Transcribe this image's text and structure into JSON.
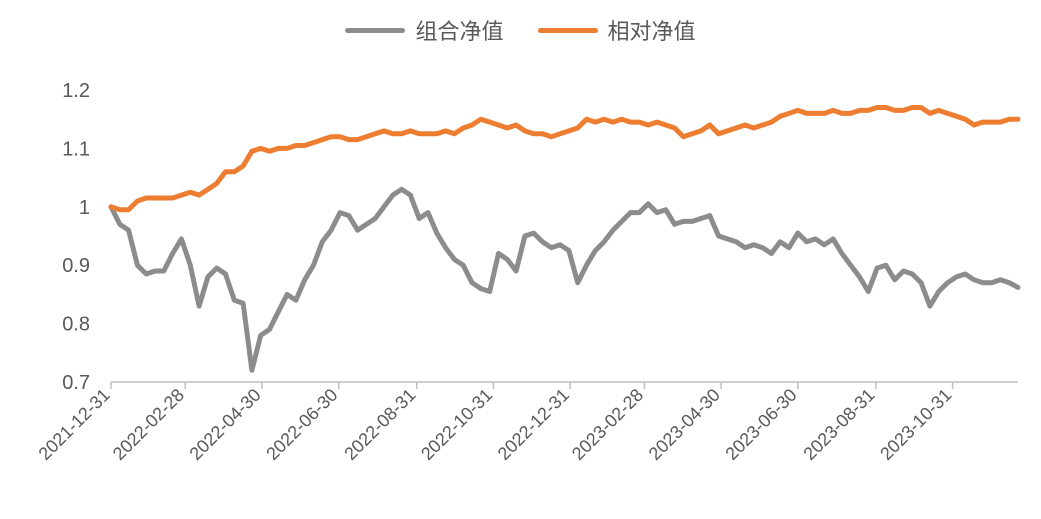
{
  "chart_data": {
    "type": "line",
    "title": "",
    "xlabel": "",
    "ylabel": "",
    "ylim": [
      0.7,
      1.2
    ],
    "yticks": [
      0.7,
      0.8,
      0.9,
      1.0,
      1.1,
      1.2
    ],
    "ytick_labels": [
      "0.7",
      "0.8",
      "0.9",
      "1",
      "1.1",
      "1.2"
    ],
    "xtick_labels": [
      "2021-12-31",
      "2022-02-28",
      "2022-04-30",
      "2022-06-30",
      "2022-08-31",
      "2022-10-31",
      "2022-12-31",
      "2023-02-28",
      "2023-04-30",
      "2023-06-30",
      "2023-08-31",
      "2023-10-31"
    ],
    "x_end": "2023-12-22",
    "grid": false,
    "legend_position": "top",
    "series": [
      {
        "name": "组合净值",
        "color": "#8c8c8c",
        "points": [
          [
            "2021-12-31",
            1.0
          ],
          [
            "2022-01-07",
            0.97
          ],
          [
            "2022-01-14",
            0.96
          ],
          [
            "2022-01-21",
            0.9
          ],
          [
            "2022-01-28",
            0.885
          ],
          [
            "2022-02-04",
            0.89
          ],
          [
            "2022-02-11",
            0.89
          ],
          [
            "2022-02-18",
            0.92
          ],
          [
            "2022-02-25",
            0.945
          ],
          [
            "2022-03-04",
            0.9
          ],
          [
            "2022-03-11",
            0.83
          ],
          [
            "2022-03-18",
            0.88
          ],
          [
            "2022-03-25",
            0.895
          ],
          [
            "2022-04-01",
            0.885
          ],
          [
            "2022-04-08",
            0.84
          ],
          [
            "2022-04-15",
            0.835
          ],
          [
            "2022-04-22",
            0.72
          ],
          [
            "2022-04-29",
            0.78
          ],
          [
            "2022-05-06",
            0.79
          ],
          [
            "2022-05-13",
            0.82
          ],
          [
            "2022-05-20",
            0.85
          ],
          [
            "2022-05-27",
            0.84
          ],
          [
            "2022-06-03",
            0.875
          ],
          [
            "2022-06-10",
            0.9
          ],
          [
            "2022-06-17",
            0.94
          ],
          [
            "2022-06-24",
            0.96
          ],
          [
            "2022-07-01",
            0.99
          ],
          [
            "2022-07-08",
            0.985
          ],
          [
            "2022-07-15",
            0.96
          ],
          [
            "2022-07-22",
            0.97
          ],
          [
            "2022-07-29",
            0.98
          ],
          [
            "2022-08-05",
            1.0
          ],
          [
            "2022-08-12",
            1.02
          ],
          [
            "2022-08-19",
            1.03
          ],
          [
            "2022-08-26",
            1.02
          ],
          [
            "2022-09-02",
            0.98
          ],
          [
            "2022-09-09",
            0.99
          ],
          [
            "2022-09-16",
            0.955
          ],
          [
            "2022-09-23",
            0.93
          ],
          [
            "2022-09-30",
            0.91
          ],
          [
            "2022-10-07",
            0.9
          ],
          [
            "2022-10-14",
            0.87
          ],
          [
            "2022-10-21",
            0.86
          ],
          [
            "2022-10-28",
            0.855
          ],
          [
            "2022-11-04",
            0.92
          ],
          [
            "2022-11-11",
            0.91
          ],
          [
            "2022-11-18",
            0.89
          ],
          [
            "2022-11-25",
            0.95
          ],
          [
            "2022-12-02",
            0.955
          ],
          [
            "2022-12-09",
            0.94
          ],
          [
            "2022-12-16",
            0.93
          ],
          [
            "2022-12-23",
            0.935
          ],
          [
            "2022-12-30",
            0.925
          ],
          [
            "2023-01-06",
            0.87
          ],
          [
            "2023-01-13",
            0.9
          ],
          [
            "2023-01-20",
            0.925
          ],
          [
            "2023-01-27",
            0.94
          ],
          [
            "2023-02-03",
            0.96
          ],
          [
            "2023-02-10",
            0.975
          ],
          [
            "2023-02-17",
            0.99
          ],
          [
            "2023-02-24",
            0.99
          ],
          [
            "2023-03-03",
            1.005
          ],
          [
            "2023-03-10",
            0.99
          ],
          [
            "2023-03-17",
            0.995
          ],
          [
            "2023-03-24",
            0.97
          ],
          [
            "2023-03-31",
            0.975
          ],
          [
            "2023-04-07",
            0.975
          ],
          [
            "2023-04-14",
            0.98
          ],
          [
            "2023-04-21",
            0.985
          ],
          [
            "2023-04-28",
            0.95
          ],
          [
            "2023-05-05",
            0.945
          ],
          [
            "2023-05-12",
            0.94
          ],
          [
            "2023-05-19",
            0.93
          ],
          [
            "2023-05-26",
            0.935
          ],
          [
            "2023-06-02",
            0.93
          ],
          [
            "2023-06-09",
            0.92
          ],
          [
            "2023-06-16",
            0.94
          ],
          [
            "2023-06-23",
            0.93
          ],
          [
            "2023-06-30",
            0.955
          ],
          [
            "2023-07-07",
            0.94
          ],
          [
            "2023-07-14",
            0.945
          ],
          [
            "2023-07-21",
            0.935
          ],
          [
            "2023-07-28",
            0.945
          ],
          [
            "2023-08-04",
            0.92
          ],
          [
            "2023-08-11",
            0.9
          ],
          [
            "2023-08-18",
            0.88
          ],
          [
            "2023-08-25",
            0.855
          ],
          [
            "2023-09-01",
            0.895
          ],
          [
            "2023-09-08",
            0.9
          ],
          [
            "2023-09-15",
            0.875
          ],
          [
            "2023-09-22",
            0.89
          ],
          [
            "2023-09-29",
            0.885
          ],
          [
            "2023-10-06",
            0.87
          ],
          [
            "2023-10-13",
            0.83
          ],
          [
            "2023-10-20",
            0.855
          ],
          [
            "2023-10-27",
            0.87
          ],
          [
            "2023-11-03",
            0.88
          ],
          [
            "2023-11-10",
            0.885
          ],
          [
            "2023-11-17",
            0.875
          ],
          [
            "2023-11-24",
            0.87
          ],
          [
            "2023-12-01",
            0.87
          ],
          [
            "2023-12-08",
            0.875
          ],
          [
            "2023-12-15",
            0.87
          ],
          [
            "2023-12-22",
            0.862
          ]
        ]
      },
      {
        "name": "相对净值",
        "color": "#ed7d31",
        "points": [
          [
            "2021-12-31",
            1.0
          ],
          [
            "2022-01-07",
            0.995
          ],
          [
            "2022-01-14",
            0.995
          ],
          [
            "2022-01-21",
            1.01
          ],
          [
            "2022-01-28",
            1.015
          ],
          [
            "2022-02-04",
            1.015
          ],
          [
            "2022-02-11",
            1.015
          ],
          [
            "2022-02-18",
            1.015
          ],
          [
            "2022-02-25",
            1.02
          ],
          [
            "2022-03-04",
            1.025
          ],
          [
            "2022-03-11",
            1.02
          ],
          [
            "2022-03-18",
            1.03
          ],
          [
            "2022-03-25",
            1.04
          ],
          [
            "2022-04-01",
            1.06
          ],
          [
            "2022-04-08",
            1.06
          ],
          [
            "2022-04-15",
            1.07
          ],
          [
            "2022-04-22",
            1.095
          ],
          [
            "2022-04-29",
            1.1
          ],
          [
            "2022-05-06",
            1.095
          ],
          [
            "2022-05-13",
            1.1
          ],
          [
            "2022-05-20",
            1.1
          ],
          [
            "2022-05-27",
            1.105
          ],
          [
            "2022-06-03",
            1.105
          ],
          [
            "2022-06-10",
            1.11
          ],
          [
            "2022-06-17",
            1.115
          ],
          [
            "2022-06-24",
            1.12
          ],
          [
            "2022-07-01",
            1.12
          ],
          [
            "2022-07-08",
            1.115
          ],
          [
            "2022-07-15",
            1.115
          ],
          [
            "2022-07-22",
            1.12
          ],
          [
            "2022-07-29",
            1.125
          ],
          [
            "2022-08-05",
            1.13
          ],
          [
            "2022-08-12",
            1.125
          ],
          [
            "2022-08-19",
            1.125
          ],
          [
            "2022-08-26",
            1.13
          ],
          [
            "2022-09-02",
            1.125
          ],
          [
            "2022-09-09",
            1.125
          ],
          [
            "2022-09-16",
            1.125
          ],
          [
            "2022-09-23",
            1.13
          ],
          [
            "2022-09-30",
            1.125
          ],
          [
            "2022-10-07",
            1.135
          ],
          [
            "2022-10-14",
            1.14
          ],
          [
            "2022-10-21",
            1.15
          ],
          [
            "2022-10-28",
            1.145
          ],
          [
            "2022-11-04",
            1.14
          ],
          [
            "2022-11-11",
            1.135
          ],
          [
            "2022-11-18",
            1.14
          ],
          [
            "2022-11-25",
            1.13
          ],
          [
            "2022-12-02",
            1.125
          ],
          [
            "2022-12-09",
            1.125
          ],
          [
            "2022-12-16",
            1.12
          ],
          [
            "2022-12-23",
            1.125
          ],
          [
            "2022-12-30",
            1.13
          ],
          [
            "2023-01-06",
            1.135
          ],
          [
            "2023-01-13",
            1.15
          ],
          [
            "2023-01-20",
            1.145
          ],
          [
            "2023-01-27",
            1.15
          ],
          [
            "2023-02-03",
            1.145
          ],
          [
            "2023-02-10",
            1.15
          ],
          [
            "2023-02-17",
            1.145
          ],
          [
            "2023-02-24",
            1.145
          ],
          [
            "2023-03-03",
            1.14
          ],
          [
            "2023-03-10",
            1.145
          ],
          [
            "2023-03-17",
            1.14
          ],
          [
            "2023-03-24",
            1.135
          ],
          [
            "2023-03-31",
            1.12
          ],
          [
            "2023-04-07",
            1.125
          ],
          [
            "2023-04-14",
            1.13
          ],
          [
            "2023-04-21",
            1.14
          ],
          [
            "2023-04-28",
            1.125
          ],
          [
            "2023-05-05",
            1.13
          ],
          [
            "2023-05-12",
            1.135
          ],
          [
            "2023-05-19",
            1.14
          ],
          [
            "2023-05-26",
            1.135
          ],
          [
            "2023-06-02",
            1.14
          ],
          [
            "2023-06-09",
            1.145
          ],
          [
            "2023-06-16",
            1.155
          ],
          [
            "2023-06-23",
            1.16
          ],
          [
            "2023-06-30",
            1.165
          ],
          [
            "2023-07-07",
            1.16
          ],
          [
            "2023-07-14",
            1.16
          ],
          [
            "2023-07-21",
            1.16
          ],
          [
            "2023-07-28",
            1.165
          ],
          [
            "2023-08-04",
            1.16
          ],
          [
            "2023-08-11",
            1.16
          ],
          [
            "2023-08-18",
            1.165
          ],
          [
            "2023-08-25",
            1.165
          ],
          [
            "2023-09-01",
            1.17
          ],
          [
            "2023-09-08",
            1.17
          ],
          [
            "2023-09-15",
            1.165
          ],
          [
            "2023-09-22",
            1.165
          ],
          [
            "2023-09-29",
            1.17
          ],
          [
            "2023-10-06",
            1.17
          ],
          [
            "2023-10-13",
            1.16
          ],
          [
            "2023-10-20",
            1.165
          ],
          [
            "2023-10-27",
            1.16
          ],
          [
            "2023-11-03",
            1.155
          ],
          [
            "2023-11-10",
            1.15
          ],
          [
            "2023-11-17",
            1.14
          ],
          [
            "2023-11-24",
            1.145
          ],
          [
            "2023-12-01",
            1.145
          ],
          [
            "2023-12-08",
            1.145
          ],
          [
            "2023-12-15",
            1.15
          ],
          [
            "2023-12-22",
            1.15
          ]
        ]
      }
    ]
  }
}
